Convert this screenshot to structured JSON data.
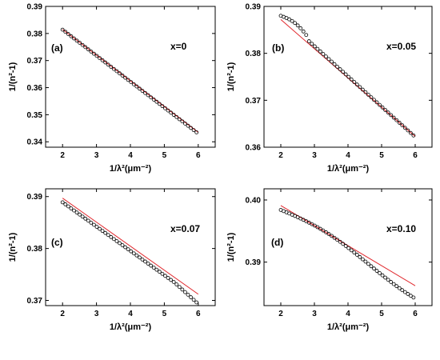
{
  "colors": {
    "points": "#000000",
    "fit_line": "#e0262b",
    "frame": "#000000"
  },
  "chart_data": [
    {
      "type": "scatter",
      "panel_label": "(a)",
      "series_label": "x=0",
      "xlabel": "1/λ²(μm⁻²)",
      "ylabel": "1/(n²-1)",
      "xlim": [
        1.5,
        6.5
      ],
      "ylim": [
        0.338,
        0.39
      ],
      "xticks": [
        "2",
        "3",
        "4",
        "5",
        "6"
      ],
      "yticks": [
        "0.34",
        "0.35",
        "0.36",
        "0.37",
        "0.38",
        "0.39"
      ],
      "fit_line": {
        "x": [
          2.0,
          6.0
        ],
        "y": [
          0.3815,
          0.3435
        ]
      },
      "points": {
        "x_start": 2.0,
        "x_end": 5.95,
        "count": 48,
        "y_start": 0.3814,
        "y_end": 0.3435
      }
    },
    {
      "type": "scatter",
      "panel_label": "(b)",
      "series_label": "x=0.05",
      "xlabel": "1/λ²(μm⁻²)",
      "ylabel": "1/(n²-1)",
      "xlim": [
        1.5,
        6.5
      ],
      "ylim": [
        0.36,
        0.39
      ],
      "xticks": [
        "2",
        "3",
        "4",
        "5",
        "6"
      ],
      "yticks": [
        "0.36",
        "0.37",
        "0.38",
        "0.39"
      ],
      "fit_line": {
        "x": [
          2.0,
          6.0
        ],
        "y": [
          0.3872,
          0.3623
        ]
      },
      "points": {
        "x_start": 2.0,
        "x_end": 5.95,
        "count": 48,
        "y_start": 0.388,
        "y_end": 0.3625
      }
    },
    {
      "type": "scatter",
      "panel_label": "(c)",
      "series_label": "x=0.07",
      "xlabel": "1/λ²(μm⁻²)",
      "ylabel": "1/(n²-1)",
      "xlim": [
        1.5,
        6.5
      ],
      "ylim": [
        0.369,
        0.3915
      ],
      "xticks": [
        "2",
        "3",
        "4",
        "5",
        "6"
      ],
      "yticks": [
        "0.37",
        "0.38",
        "0.39"
      ],
      "fit_line": {
        "x": [
          2.0,
          6.0
        ],
        "y": [
          0.3897,
          0.3712
        ]
      },
      "points": {
        "x_start": 2.0,
        "x_end": 5.95,
        "count": 48,
        "y_start": 0.3889,
        "y_end": 0.3704
      }
    },
    {
      "type": "scatter",
      "panel_label": "(d)",
      "series_label": "x=0.10",
      "xlabel": "1/λ²(μm⁻²)",
      "ylabel": "1/(n²-1)",
      "xlim": [
        1.5,
        6.5
      ],
      "ylim": [
        0.383,
        0.4018
      ],
      "xticks": [
        "2",
        "3",
        "4",
        "5",
        "6"
      ],
      "yticks": [
        "0.39",
        "0.40"
      ],
      "fit_line": {
        "x": [
          2.0,
          6.0
        ],
        "y": [
          0.3991,
          0.3862
        ]
      },
      "points": {
        "x_start": 2.0,
        "x_end": 5.95,
        "count": 48,
        "y_start": 0.3984,
        "y_end": 0.3852
      }
    }
  ]
}
